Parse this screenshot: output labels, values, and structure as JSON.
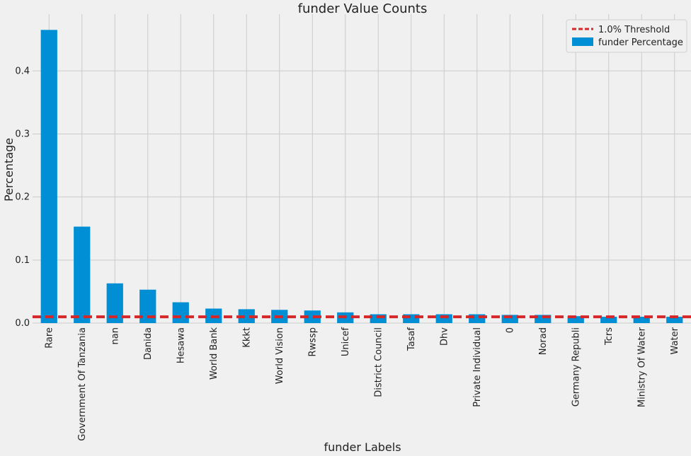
{
  "chart_data": {
    "type": "bar",
    "title": "funder Value Counts",
    "xlabel": "funder Labels",
    "ylabel": "Percentage",
    "categories": [
      "Rare",
      "Government Of Tanzania",
      "nan",
      "Danida",
      "Hesawa",
      "World Bank",
      "Kkkt",
      "World Vision",
      "Rwssp",
      "Unicef",
      "District Council",
      "Tasaf",
      "Dhv",
      "Private Individual",
      "0",
      "Norad",
      "Germany Republi",
      "Tcrs",
      "Ministry Of Water",
      "Water"
    ],
    "series": [
      {
        "name": "funder Percentage",
        "values": [
          0.465,
          0.153,
          0.063,
          0.053,
          0.033,
          0.023,
          0.022,
          0.021,
          0.02,
          0.017,
          0.014,
          0.014,
          0.014,
          0.014,
          0.013,
          0.013,
          0.011,
          0.01,
          0.01,
          0.01
        ],
        "color": "#008fd5"
      }
    ],
    "threshold": {
      "label": "1.0% Threshold",
      "value": 0.01,
      "color": "#d62728",
      "style": "dashed"
    },
    "yticks": [
      "0.0",
      "0.1",
      "0.2",
      "0.3",
      "0.4"
    ],
    "ylim": [
      0,
      0.49
    ],
    "grid": true,
    "legend_position": "top-right"
  }
}
